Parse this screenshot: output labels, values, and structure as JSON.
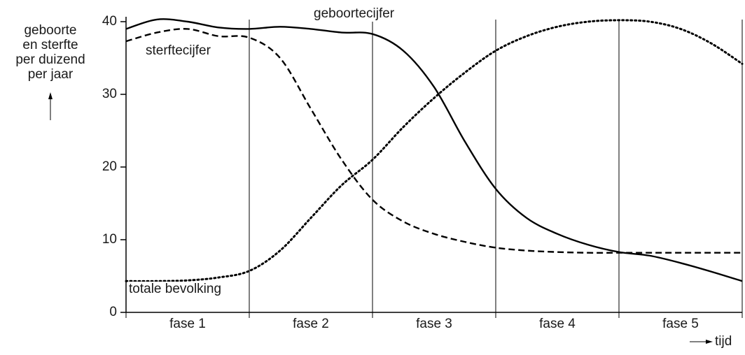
{
  "chart_data": {
    "type": "line",
    "ylabel": [
      "geboorte",
      "en sterfte",
      "per duizend",
      "per jaar"
    ],
    "xlabel": "tijd",
    "phases": [
      "fase 1",
      "fase 2",
      "fase 3",
      "fase 4",
      "fase 5"
    ],
    "x": [
      0,
      0.25,
      0.5,
      0.75,
      1,
      1.25,
      1.5,
      1.75,
      2,
      2.25,
      2.5,
      2.75,
      3,
      3.25,
      3.5,
      3.75,
      4,
      4.25,
      4.5,
      4.75,
      5
    ],
    "xlim": [
      0,
      5
    ],
    "xticks": [
      0,
      1,
      2,
      3,
      4,
      5
    ],
    "ylim": [
      0,
      40
    ],
    "yticks": [
      0,
      10,
      20,
      30,
      40
    ],
    "series": [
      {
        "name": "geboortecijfer",
        "color": "#000000",
        "style": "solid",
        "values": [
          39,
          40.3,
          40,
          39.2,
          39,
          39.3,
          39,
          38.5,
          38.3,
          36,
          31,
          23.5,
          17,
          13,
          10.8,
          9.3,
          8.3,
          7.8,
          6.8,
          5.6,
          4.3
        ]
      },
      {
        "name": "sterftecijfer",
        "color": "#000000",
        "style": "dashed",
        "values": [
          37.3,
          38.5,
          39,
          38,
          37.8,
          35,
          28,
          21,
          15.5,
          12.5,
          10.8,
          9.7,
          8.9,
          8.5,
          8.3,
          8.2,
          8.2,
          8.2,
          8.2,
          8.2,
          8.2
        ]
      },
      {
        "name": "totale bevolking",
        "color": "#000000",
        "style": "dotted",
        "values": [
          4.3,
          4.3,
          4.4,
          4.8,
          5.7,
          8.5,
          13,
          17.5,
          21,
          25.5,
          29.5,
          33,
          36,
          38,
          39.3,
          40,
          40.2,
          40,
          39,
          37,
          34.2
        ]
      }
    ]
  }
}
